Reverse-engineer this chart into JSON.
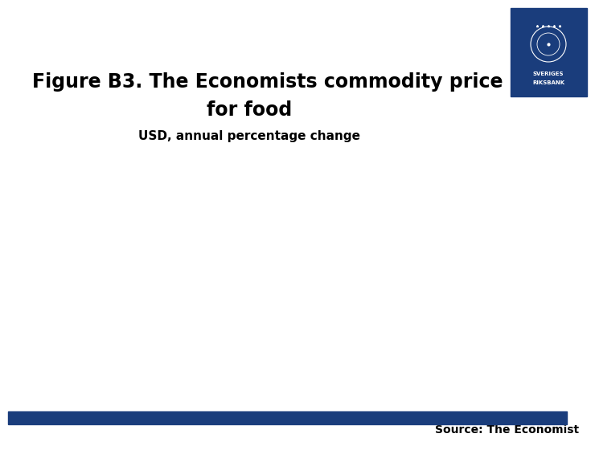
{
  "title_line1": "Figure B3. The Economists commodity price index",
  "title_line2": "for food",
  "subtitle": "USD, annual percentage change",
  "source_text": "Source: The Economist",
  "title_fontsize": 17,
  "subtitle_fontsize": 11,
  "source_fontsize": 10,
  "background_color": "#ffffff",
  "banner_color": "#1a3d7c",
  "logo_box_color": "#1a3d7c",
  "text_color": "#000000",
  "source_color": "#000000"
}
